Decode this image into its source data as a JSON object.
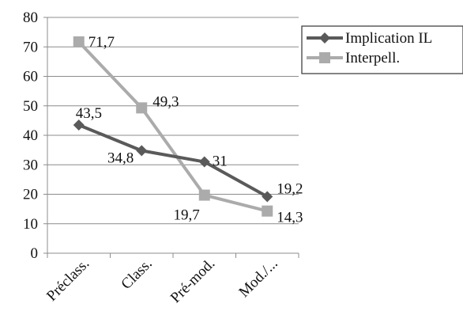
{
  "chart_data": {
    "type": "line",
    "categories": [
      "Préclass.",
      "Class.",
      "Pré-mod.",
      "Mod./..."
    ],
    "series": [
      {
        "name": "Implication IL",
        "values": [
          43.5,
          34.8,
          31,
          19.2
        ],
        "labels": [
          "43,5",
          "34,8",
          "31",
          "19,2"
        ],
        "color": "#5a5a5a",
        "marker": "diamond"
      },
      {
        "name": "Interpell.",
        "values": [
          71.7,
          49.3,
          19.7,
          14.3
        ],
        "labels": [
          "71,7",
          "49,3",
          "19,7",
          "14,3"
        ],
        "color": "#ababab",
        "marker": "square"
      }
    ],
    "ylim": [
      0,
      80
    ],
    "yticks": [
      "0",
      "10",
      "20",
      "30",
      "40",
      "50",
      "60",
      "70",
      "80"
    ],
    "grid": true,
    "legend": "right"
  }
}
